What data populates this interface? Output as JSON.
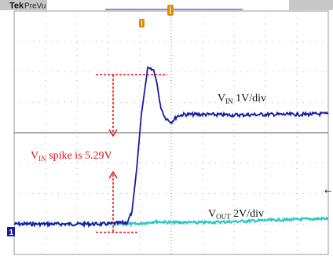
{
  "header": {
    "brand": "Tek",
    "mode": "PreVu"
  },
  "colors": {
    "background": "#ffffff",
    "grid": "#9a9a9a",
    "header_bar": "#c8c8c8",
    "vin_trace": "#1a1aa6",
    "vout_trace": "#2ec6c6",
    "annotation": "#e01010",
    "trigger_marker": "#d89000",
    "record_bar": "#5b6fd8"
  },
  "chart_data": {
    "type": "line",
    "grid": {
      "divisions_x": 10,
      "divisions_y": 8,
      "on": true
    },
    "x": {
      "unit": "div",
      "range": [
        0,
        10
      ]
    },
    "y": {
      "unit": "div",
      "range": [
        -4,
        4
      ]
    },
    "series": [
      {
        "name": "VIN",
        "scale": "1V/div",
        "color": "#1a1aa6",
        "x": [
          0,
          1,
          2,
          3,
          3.6,
          3.75,
          3.9,
          4.05,
          4.25,
          4.45,
          4.55,
          4.65,
          4.8,
          5.0,
          5.2,
          5.4,
          5.6,
          6.0,
          7,
          8,
          9,
          10
        ],
        "y": [
          -3.0,
          -3.0,
          -3.0,
          -3.0,
          -2.95,
          -2.6,
          -1.2,
          0.6,
          2.1,
          2.05,
          1.6,
          0.9,
          0.5,
          0.35,
          0.55,
          0.6,
          0.6,
          0.6,
          0.58,
          0.6,
          0.6,
          0.62
        ]
      },
      {
        "name": "VOUT",
        "scale": "2V/div",
        "color": "#2ec6c6",
        "x": [
          0,
          1,
          2,
          3,
          3.9,
          4.5,
          5,
          6,
          7,
          8,
          9,
          10
        ],
        "y": [
          -3.0,
          -3.0,
          -3.0,
          -3.0,
          -3.0,
          -2.92,
          -2.95,
          -2.95,
          -2.92,
          -2.88,
          -2.85,
          -2.82
        ]
      }
    ],
    "annotations": {
      "spike_text": "V",
      "spike_sub": "IN",
      "spike_rest": " spike is 5.29V",
      "spike_value": 5.29,
      "vin_label": {
        "main": "V",
        "sub": "IN",
        "rest": "  1V/div"
      },
      "vout_label": {
        "main": "V",
        "sub": "OUT",
        "rest": "  2V/div"
      }
    },
    "markers": {
      "ground_left": "1",
      "right_arrow": "←"
    }
  }
}
